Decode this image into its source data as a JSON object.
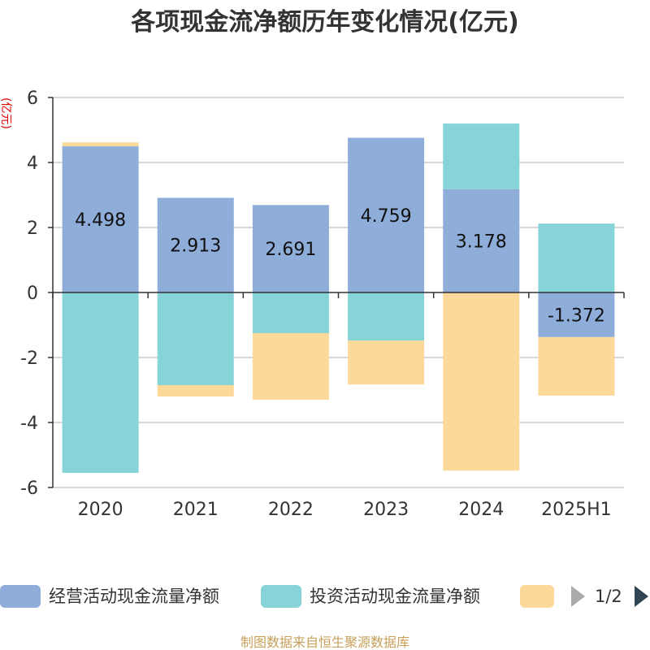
{
  "title": "各项现金流净额历年变化情况(亿元)",
  "chart_data": {
    "type": "bar",
    "stacked": true,
    "unit_label": "(亿元)",
    "categories": [
      "2020",
      "2021",
      "2022",
      "2023",
      "2024",
      "2025H1"
    ],
    "ylim": [
      -6,
      6
    ],
    "yticks": [
      6,
      4,
      2,
      0,
      -2,
      -4,
      -6
    ],
    "grid": true,
    "series": [
      {
        "name": "经营活动现金流量净额",
        "color": "#8eadd9",
        "values": [
          4.498,
          2.913,
          2.691,
          4.759,
          3.178,
          -1.372
        ],
        "labels": [
          "4.498",
          "2.913",
          "2.691",
          "4.759",
          "3.178",
          "-1.372"
        ]
      },
      {
        "name": "投资活动现金流量净额",
        "color": "#86d4d7",
        "values": [
          -5.55,
          -2.85,
          -1.25,
          -1.48,
          2.02,
          2.12
        ]
      },
      {
        "name": "",
        "color": "#fdd999",
        "values": [
          0.12,
          -0.35,
          -2.05,
          -1.35,
          -5.48,
          -1.8
        ]
      }
    ]
  },
  "legend": {
    "page": "1/2",
    "position": "bottom"
  },
  "source": "制图数据来自恒生聚源数据库"
}
